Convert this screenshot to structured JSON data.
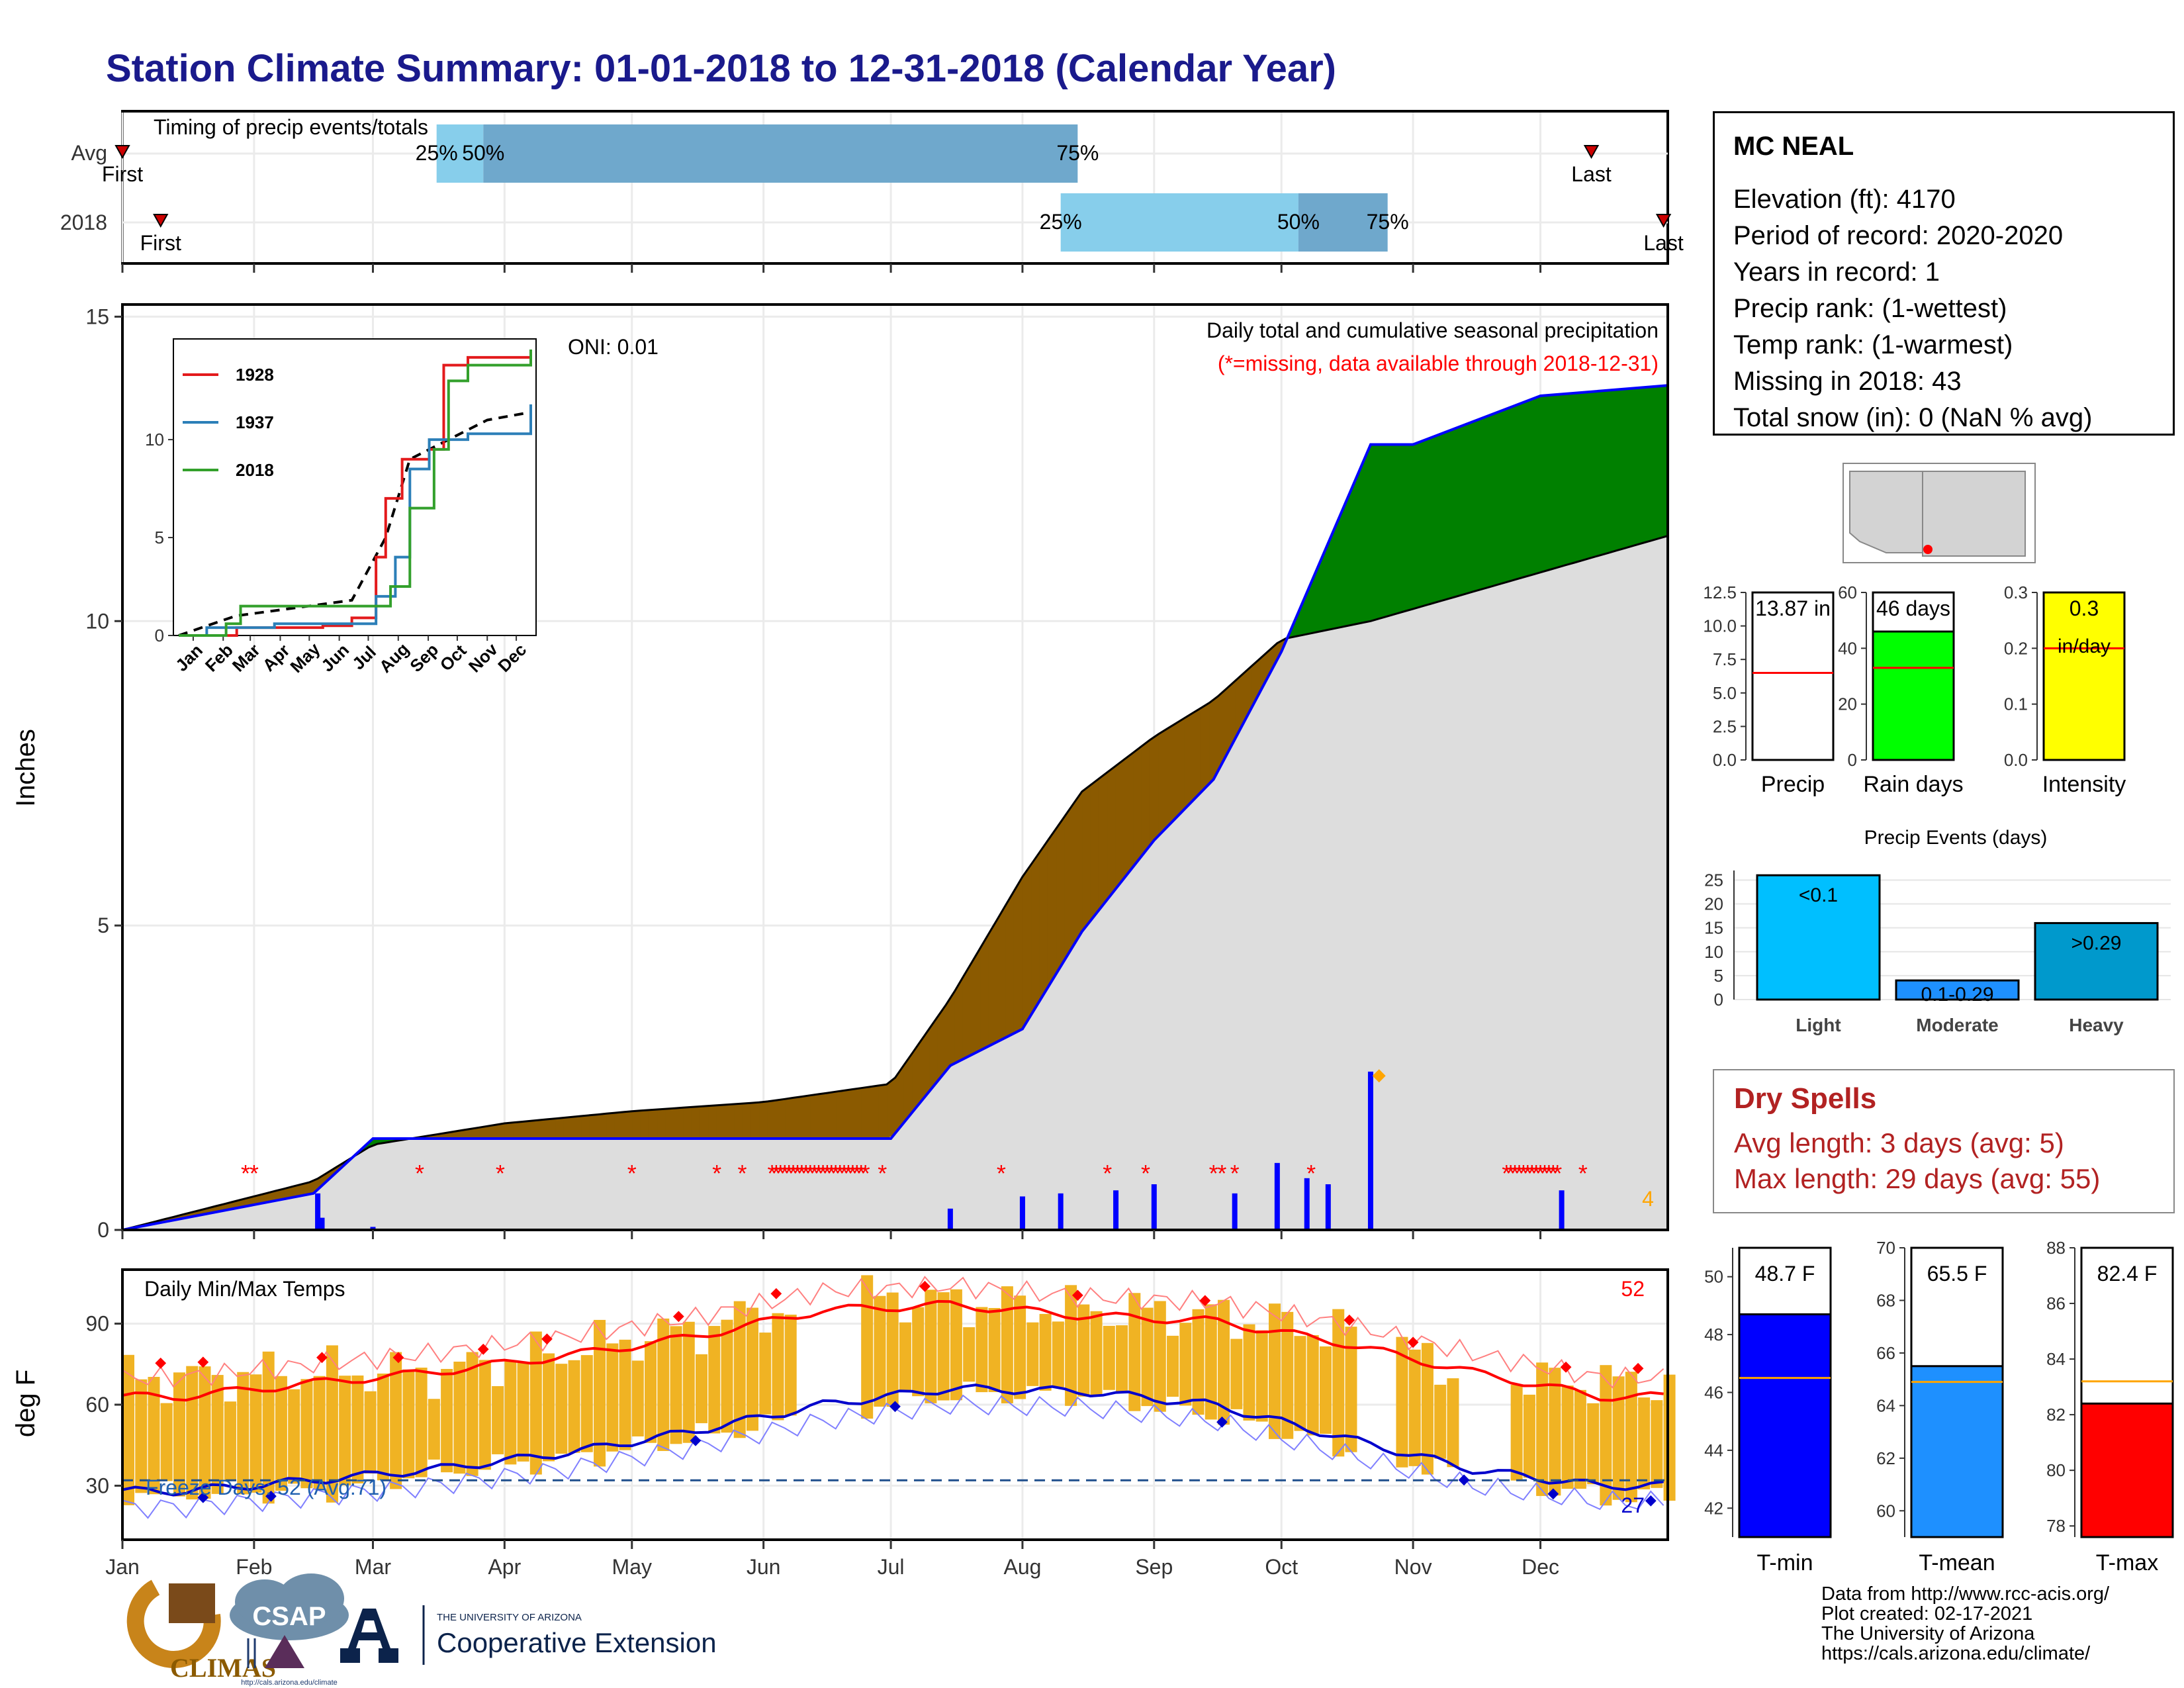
{
  "title": "Station Climate Summary: 01-01-2018 to 12-31-2018 (Calendar Year)",
  "timing": {
    "label": "Timing of precip events/totals",
    "rows": [
      "Avg",
      "2018"
    ],
    "avg": {
      "first_label": "First",
      "last_label": "Last",
      "p25_label": "25%",
      "p50_label": "50%",
      "p75_label": "75%",
      "first_day": 1,
      "p25_day": 75,
      "p50_day": 86,
      "p75_day": 226,
      "last_day": 347
    },
    "y2018": {
      "first_label": "First",
      "last_label": "Last",
      "p25_label": "25%",
      "p50_label": "50%",
      "p75_label": "75%",
      "first_day": 10,
      "p25_day": 222,
      "p50_day": 278,
      "p75_day": 299,
      "last_day": 364
    }
  },
  "precip_panel": {
    "ylabel": "Inches",
    "yticks": [
      "0",
      "5",
      "10",
      "15"
    ],
    "ytick_values": [
      0,
      5,
      10,
      15
    ],
    "title": "Daily total and cumulative seasonal precipitation",
    "subtitle": "(*=missing, data available through 2018-12-31)",
    "oni": "ONI: 0.01",
    "corner_value": "4"
  },
  "inset": {
    "legend": [
      "1928",
      "1937",
      "2018"
    ],
    "colors": [
      "#e31a1c",
      "#2c7fb8",
      "#33a02c"
    ],
    "yticks": [
      "0",
      "5",
      "10"
    ],
    "months": [
      "Jan",
      "Feb",
      "Mar",
      "Apr",
      "May",
      "Jun",
      "Jul",
      "Aug",
      "Sep",
      "Oct",
      "Nov",
      "Dec"
    ]
  },
  "months": [
    "Jan",
    "Feb",
    "Mar",
    "Apr",
    "May",
    "Jun",
    "Jul",
    "Aug",
    "Sep",
    "Oct",
    "Nov",
    "Dec"
  ],
  "temp_panel": {
    "ylabel": "deg F",
    "title": "Daily Min/Max Temps",
    "yticks": [
      "30",
      "60",
      "90"
    ],
    "ytick_values": [
      30,
      60,
      90
    ],
    "freeze_label": "Freeze Days: 52 (Avg:71)",
    "hot_count": "52",
    "cold_count": "27",
    "freeze_line": 32
  },
  "station": {
    "name": "MC NEAL",
    "lines": [
      "Elevation (ft): 4170",
      "Period of record: 2020-2020",
      "Years in record: 1",
      "Precip rank:  (1-wettest)",
      "Temp rank:  (1-warmest)",
      "Missing in 2018: 43",
      "Total snow (in): 0 (NaN % avg)"
    ]
  },
  "summary_bars": {
    "precip": {
      "label": "Precip",
      "value": 13.87,
      "value_label": "13.87 in",
      "avg": 6.5,
      "max": 12.5,
      "ticks": [
        "0.0",
        "2.5",
        "5.0",
        "7.5",
        "10.0",
        "12.5"
      ],
      "color": "#ffffff"
    },
    "rain_days": {
      "label": "Rain days",
      "value": 46,
      "value_label": "46 days",
      "avg": 33,
      "max": 60,
      "ticks": [
        "0",
        "20",
        "40",
        "60"
      ],
      "color": "#00ff00"
    },
    "intensity": {
      "label": "Intensity",
      "value": 0.3,
      "value_label": "0.3",
      "unit_label": "in/day",
      "avg": 0.2,
      "max": 0.3,
      "ticks": [
        "0.0",
        "0.1",
        "0.2",
        "0.3"
      ],
      "color": "#ffff00"
    }
  },
  "events": {
    "title": "Precip Events (days)",
    "categories": [
      "Light",
      "Moderate",
      "Heavy"
    ],
    "bar_labels": [
      "<0.1",
      "0.1-0.29",
      ">0.29"
    ],
    "values": [
      26,
      4,
      16
    ],
    "yticks": [
      "0",
      "5",
      "10",
      "15",
      "20",
      "25"
    ],
    "colors": [
      "#00bfff",
      "#1e90ff",
      "#0099cc"
    ]
  },
  "dry_spells": {
    "title": "Dry Spells",
    "avg_line": "Avg length: 3 days (avg: 5)",
    "max_line": "Max length: 29 days (avg: 55)"
  },
  "temps_summary": {
    "tmin": {
      "label": "T-min",
      "value": 48.7,
      "value_label": "48.7 F",
      "avg": 46.5,
      "min": 41,
      "max": 51,
      "ticks": [
        "42",
        "44",
        "46",
        "48",
        "50"
      ],
      "color": "#0000ff"
    },
    "tmean": {
      "label": "T-mean",
      "value": 65.5,
      "value_label": "65.5 F",
      "avg": 64.9,
      "min": 59,
      "max": 70,
      "ticks": [
        "60",
        "62",
        "64",
        "66",
        "68",
        "70"
      ],
      "color": "#1e90ff"
    },
    "tmax": {
      "label": "T-max",
      "value": 82.4,
      "value_label": "82.4 F",
      "avg": 83.2,
      "min": 77.6,
      "max": 88,
      "ticks": [
        "78",
        "80",
        "82",
        "84",
        "86",
        "88"
      ],
      "color": "#ff0000"
    }
  },
  "footer": [
    "Data from http://www.rcc-acis.org/",
    "Plot created: 02-17-2021",
    "The University of Arizona",
    "https://cals.arizona.edu/climate/"
  ],
  "logos": {
    "climas": "CLIMAS",
    "csap": "CSAP",
    "csap_url": "http://cals.arizona.edu/climate",
    "ua_small": "THE UNIVERSITY OF ARIZONA",
    "ua_big": "Cooperative Extension"
  },
  "colors": {
    "title": "#1a1a8c",
    "dry_spell": "#b22222",
    "missing": "#ff0000",
    "cumulative": "#0000ff",
    "surplus": "#008000",
    "deficit": "#8b5a00",
    "normal_fill": "#dddddd"
  },
  "chart_data": [
    {
      "type": "area",
      "title": "Daily total and cumulative seasonal precipitation",
      "ylabel": "Inches",
      "ylim": [
        0,
        15
      ],
      "x": [
        "2018-01-01",
        "2018-02-15",
        "2018-03-01",
        "2018-04-01",
        "2018-05-01",
        "2018-06-01",
        "2018-07-01",
        "2018-07-15",
        "2018-08-01",
        "2018-08-15",
        "2018-09-01",
        "2018-09-15",
        "2018-10-01",
        "2018-10-22",
        "2018-11-01",
        "2018-12-01",
        "2018-12-31"
      ],
      "series": [
        {
          "name": "2018",
          "values": [
            0.0,
            0.6,
            1.5,
            1.5,
            1.5,
            1.5,
            1.5,
            2.7,
            3.3,
            4.9,
            6.4,
            7.4,
            9.5,
            12.9,
            12.9,
            13.7,
            13.87
          ]
        },
        {
          "name": "Avg",
          "values": [
            0.0,
            0.8,
            1.4,
            1.75,
            1.95,
            2.1,
            2.4,
            3.8,
            5.8,
            7.2,
            8.1,
            8.7,
            9.7,
            10.0,
            10.2,
            10.8,
            11.4
          ]
        }
      ],
      "daily_precip": [
        {
          "x": "2018-02-16",
          "y": 0.6
        },
        {
          "x": "2018-02-17",
          "y": 0.2
        },
        {
          "x": "2018-03-01",
          "y": 0.05
        },
        {
          "x": "2018-07-15",
          "y": 0.35
        },
        {
          "x": "2018-08-01",
          "y": 0.55
        },
        {
          "x": "2018-08-10",
          "y": 0.6
        },
        {
          "x": "2018-08-23",
          "y": 0.65
        },
        {
          "x": "2018-09-01",
          "y": 0.75
        },
        {
          "x": "2018-09-20",
          "y": 0.6
        },
        {
          "x": "2018-09-30",
          "y": 1.1
        },
        {
          "x": "2018-10-07",
          "y": 0.85
        },
        {
          "x": "2018-10-12",
          "y": 0.75
        },
        {
          "x": "2018-10-22",
          "y": 2.6
        },
        {
          "x": "2018-12-06",
          "y": 0.65
        }
      ]
    },
    {
      "type": "line",
      "title": "Daily Min/Max Temps",
      "ylabel": "deg F",
      "ylim": [
        10,
        110
      ],
      "categories": [
        "Jan",
        "Feb",
        "Mar",
        "Apr",
        "May",
        "Jun",
        "Jul",
        "Aug",
        "Sep",
        "Oct",
        "Nov",
        "Dec"
      ],
      "series": [
        {
          "name": "Avg max",
          "values": [
            63,
            68,
            72,
            78,
            85,
            95,
            97,
            93,
            91,
            83,
            72,
            63
          ]
        },
        {
          "name": "Avg min",
          "values": [
            28,
            32,
            36,
            42,
            50,
            60,
            66,
            65,
            60,
            48,
            36,
            30
          ]
        },
        {
          "name": "Max",
          "values": [
            70,
            72,
            72,
            80,
            88,
            100,
            98,
            95,
            93,
            87,
            70,
            68
          ]
        },
        {
          "name": "Min",
          "values": [
            27,
            28,
            35,
            40,
            48,
            57,
            64,
            64,
            56,
            44,
            33,
            26
          ]
        }
      ]
    },
    {
      "type": "bar",
      "title": "Precip Events (days)",
      "categories": [
        "Light",
        "Moderate",
        "Heavy"
      ],
      "values": [
        26,
        4,
        16
      ],
      "ylim": [
        0,
        27
      ]
    },
    {
      "type": "bar",
      "categories": [
        "Precip",
        "Rain days",
        "Intensity"
      ],
      "values": [
        13.87,
        46,
        0.3
      ]
    },
    {
      "type": "bar",
      "categories": [
        "T-min",
        "T-mean",
        "T-max"
      ],
      "values": [
        48.7,
        65.5,
        82.4
      ]
    }
  ]
}
